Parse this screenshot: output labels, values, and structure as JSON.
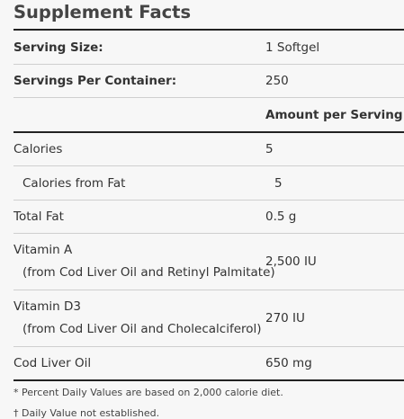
{
  "title": "Supplement Facts",
  "serving_size": {
    "label": "Serving Size:",
    "value": "1 Softgel"
  },
  "servings_per_container": {
    "label": "Servings Per Container:",
    "value": "250"
  },
  "amount_header": "Amount per Serving",
  "nutrients": [
    {
      "name": "Calories",
      "amount": "5"
    },
    {
      "name": "Calories from Fat",
      "amount": "5"
    },
    {
      "name": "Total Fat",
      "amount": "0.5 g"
    },
    {
      "name": "Vitamin A",
      "source": "(from Cod Liver Oil and Retinyl Palmitate)",
      "amount": "2,500 IU"
    },
    {
      "name": "Vitamin D3",
      "source": "(from Cod Liver Oil and Cholecalciferol)",
      "amount": "270 IU"
    },
    {
      "name": "Cod Liver Oil",
      "amount": "650 mg"
    }
  ],
  "footnotes": [
    "* Percent Daily Values are based on 2,000 calorie diet.",
    "† Daily Value not established."
  ]
}
